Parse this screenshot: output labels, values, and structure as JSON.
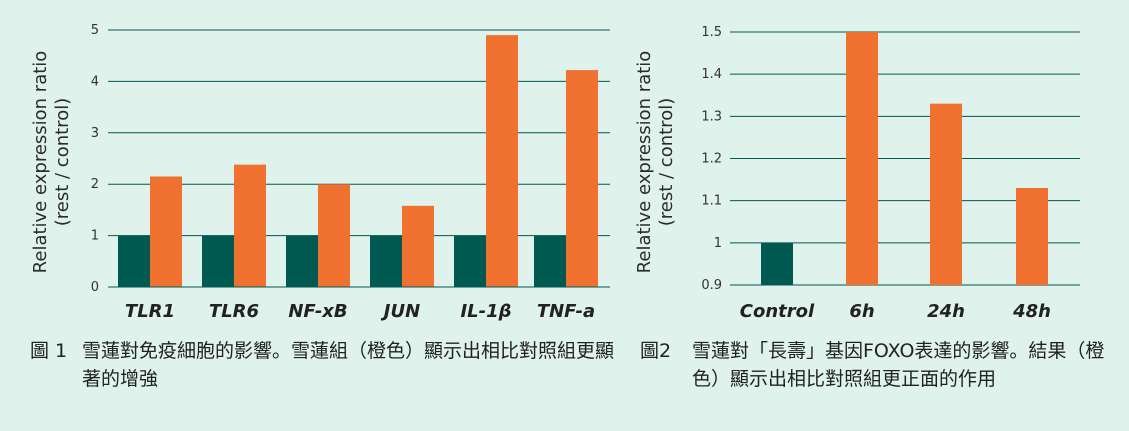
{
  "colors": {
    "rest": "#005a52",
    "treated": "#f07030",
    "grid": "#005a52",
    "background": "#dff2ec"
  },
  "figure1": {
    "ylabel_line1": "Relative expression ratio",
    "ylabel_line2": "(rest / control)",
    "caption_num": "圖 1",
    "caption_text": "雪蓮對免疫細胞的影響。雪蓮組（橙色）顯示出相比對照組更顯著的增強"
  },
  "figure2": {
    "ylabel_line1": "Relative expression ratio",
    "ylabel_line2": "(rest / control)",
    "caption_num": "圖2",
    "caption_text": "雪蓮對「長壽」基因FOXO表達的影響。結果（橙色）顯示出相比對照組更正面的作用"
  },
  "chart_data": [
    {
      "type": "bar",
      "categories": [
        "TLR1",
        "TLR6",
        "NF-xB",
        "JUN",
        "IL-1β",
        "TNF-a"
      ],
      "series": [
        {
          "color": "#005a52",
          "values": [
            1,
            1,
            1,
            1,
            1,
            1
          ]
        },
        {
          "color": "#f07030",
          "values": [
            2.15,
            2.38,
            2.0,
            1.58,
            4.9,
            4.22
          ]
        }
      ],
      "yticks": [
        "0",
        "1",
        "2",
        "3",
        "4",
        "5"
      ],
      "ylim": [
        0,
        5
      ],
      "ylabel": "Relative expression ratio (rest / control)",
      "grid": true
    },
    {
      "type": "bar",
      "categories": [
        "Control",
        "6h",
        "24h",
        "48h"
      ],
      "values": [
        1.0,
        1.5,
        1.33,
        1.13
      ],
      "colors": [
        "#005a52",
        "#f07030",
        "#f07030",
        "#f07030"
      ],
      "yticks": [
        "0.9",
        "1",
        "1.1",
        "1.2",
        "1.3",
        "1.4",
        "1.5"
      ],
      "ylim": [
        0.9,
        1.5
      ],
      "ylabel": "Relative expression ratio (rest / control)",
      "grid": true
    }
  ]
}
